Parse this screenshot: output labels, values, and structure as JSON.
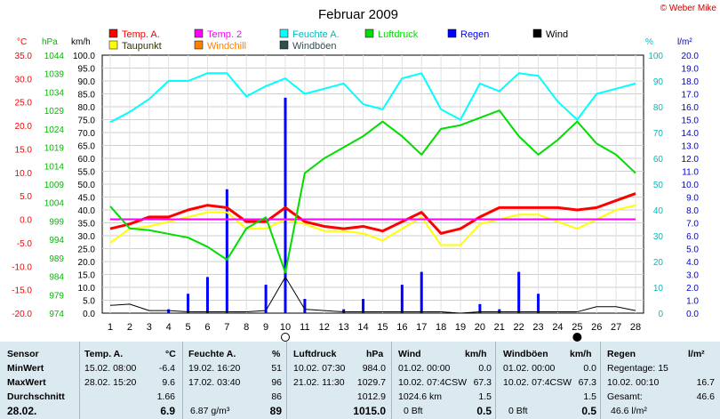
{
  "chart_data": {
    "type": "line",
    "title": "Februar 2009",
    "credit": "© Weber Mike",
    "x": [
      1,
      2,
      3,
      4,
      5,
      6,
      7,
      8,
      9,
      10,
      11,
      12,
      13,
      14,
      15,
      16,
      17,
      18,
      19,
      20,
      21,
      22,
      23,
      24,
      25,
      26,
      27,
      28
    ],
    "axes_units": {
      "temp": "°C",
      "pressure": "hPa",
      "speed": "km/h",
      "humidity": "%",
      "rain": "l/m²"
    },
    "axes": {
      "temp": {
        "min": -20,
        "max": 35,
        "step": 5
      },
      "pressure": {
        "min": 974,
        "max": 1044,
        "step": 5
      },
      "speed": {
        "min": 0,
        "max": 100,
        "step": 5
      },
      "humidity": {
        "min": 0,
        "max": 100,
        "step": 10
      },
      "rain": {
        "min": 0,
        "max": 20,
        "step": 1
      }
    },
    "legend": [
      {
        "name": "Temp. A.",
        "color": "#ff0000"
      },
      {
        "name": "Temp. 2",
        "color": "#ff00ff"
      },
      {
        "name": "Feuchte A.",
        "color": "#00ffff"
      },
      {
        "name": "Luftdruck",
        "color": "#00dd00"
      },
      {
        "name": "Regen",
        "color": "#0000ff"
      },
      {
        "name": "Wind",
        "color": "#000000"
      },
      {
        "name": "Taupunkt",
        "color": "#ffff00"
      },
      {
        "name": "Windchill",
        "color": "#ff8000"
      },
      {
        "name": "Windböen",
        "color": "#2f4f4f"
      }
    ],
    "series": [
      {
        "name": "Temp. A.",
        "axis": "temp",
        "color": "#ff0000",
        "width": 3,
        "values": [
          -2,
          -1,
          0.5,
          0.5,
          2,
          3,
          2.5,
          -0.5,
          -0.5,
          2.5,
          -0.5,
          -1.5,
          -2,
          -1.5,
          -2.5,
          -0.5,
          1.5,
          -3,
          -2,
          0.5,
          2.5,
          2.5,
          2.5,
          2.5,
          2,
          2.5,
          4,
          5.5
        ]
      },
      {
        "name": "Taupunkt",
        "axis": "temp",
        "color": "#ffff00",
        "width": 2,
        "values": [
          -5,
          -2,
          -1.5,
          -0.5,
          0.5,
          1.5,
          1.5,
          -2,
          -2,
          0,
          -1,
          -2.5,
          -2.5,
          -3,
          -4.5,
          -2,
          0.5,
          -5.5,
          -5.5,
          -1,
          0,
          1,
          1,
          -0.5,
          -2,
          0,
          2,
          3
        ]
      },
      {
        "name": "Temp. 2",
        "axis": "temp",
        "color": "#ff00ff",
        "width": 2,
        "values": [
          0,
          0,
          0,
          0,
          0,
          0,
          0,
          0,
          0,
          0,
          0,
          0,
          0,
          0,
          0,
          0,
          0,
          0,
          0,
          0,
          0,
          0,
          0,
          0,
          0,
          0,
          0,
          0
        ]
      },
      {
        "name": "Feuchte A.",
        "axis": "humidity",
        "color": "#00ffff",
        "width": 2,
        "values": [
          74,
          78,
          83,
          90,
          90,
          93,
          93,
          84,
          88,
          91,
          85,
          87,
          89,
          81,
          79,
          91,
          93,
          79,
          75,
          89,
          86,
          93,
          92,
          82,
          75,
          85,
          87,
          89
        ]
      },
      {
        "name": "Luftdruck",
        "axis": "pressure",
        "color": "#00dd00",
        "width": 2,
        "values": [
          1003,
          997,
          996.5,
          995.5,
          994.5,
          992,
          988.5,
          997,
          1000,
          985,
          1012,
          1016,
          1019,
          1022,
          1026,
          1022,
          1017,
          1024,
          1025,
          1027,
          1029,
          1022,
          1017,
          1021,
          1026,
          1020,
          1017,
          1012
        ]
      },
      {
        "name": "Wind",
        "axis": "speed",
        "color": "#000000",
        "width": 1,
        "values": [
          3,
          3.5,
          1,
          1,
          0.5,
          0.5,
          0.5,
          0.5,
          1,
          14,
          1.5,
          1,
          0.5,
          0.5,
          0.5,
          0.5,
          0.5,
          0.5,
          0,
          0.5,
          0.5,
          0.5,
          0.5,
          0.5,
          0.5,
          2.5,
          2.5,
          1
        ]
      }
    ],
    "bars": {
      "name": "Regen",
      "axis": "rain",
      "color": "#0000ff",
      "values": [
        {
          "x": 4,
          "value": 0.3
        },
        {
          "x": 5,
          "value": 1.5
        },
        {
          "x": 6,
          "value": 2.8
        },
        {
          "x": 7,
          "value": 9.6
        },
        {
          "x": 9,
          "value": 2.2
        },
        {
          "x": 10,
          "value": 16.7
        },
        {
          "x": 11,
          "value": 1.1
        },
        {
          "x": 13,
          "value": 0.3
        },
        {
          "x": 14,
          "value": 1.1
        },
        {
          "x": 16,
          "value": 2.2
        },
        {
          "x": 17,
          "value": 3.2
        },
        {
          "x": 20,
          "value": 0.7
        },
        {
          "x": 21,
          "value": 0.3
        },
        {
          "x": 22,
          "value": 3.2
        },
        {
          "x": 23,
          "value": 1.5
        }
      ]
    }
  },
  "moon": {
    "full_moon_day": 10,
    "new_moon_day": 25
  },
  "table": {
    "headers": {
      "sensor": "Sensor",
      "temp": "Temp. A.",
      "temp_unit": "°C",
      "hum": "Feuchte A.",
      "hum_unit": "%",
      "press": "Luftdruck",
      "press_unit": "hPa",
      "wind": "Wind",
      "wind_unit": "km/h",
      "gust": "Windböen",
      "gust_unit": "km/h",
      "rain": "Regen",
      "rain_unit": "l/m²"
    },
    "row_labels": {
      "min": "MinWert",
      "max": "MaxWert",
      "avg": "Durchschnitt",
      "date": "28.02."
    },
    "temp": {
      "min_time": "15.02.  08:00",
      "min_val": "-6.4",
      "max_time": "28.02.  15:20",
      "max_val": "9.6",
      "avg": "1.66",
      "cur": "6.9"
    },
    "hum": {
      "min_time": "19.02.  16:20",
      "min_val": "51",
      "max_time": "17.02.  03:40",
      "max_val": "96",
      "avg": "86",
      "cur_extra": "6.87 g/m³",
      "cur": "89"
    },
    "press": {
      "min_time": "10.02.  07:30",
      "min_val": "984.0",
      "max_time": "21.02.  11:30",
      "max_val": "1029.7",
      "avg": "1012.9",
      "cur": "1015.0"
    },
    "wind": {
      "min_time": "01.02.  00:00",
      "min_val": "0.0",
      "max_time": "10.02.  07:4CSW",
      "max_val": "67.3",
      "avg_extra": "1024.6 km",
      "avg": "1.5",
      "cur_extra": "0 Bft",
      "cur": "0.5"
    },
    "gust": {
      "min_time": "01.02.  00:00",
      "min_val": "0.0",
      "max_time": "10.02.  07:4CSW",
      "max_val": "67.3",
      "avg": "1.5",
      "cur_extra": "0 Bft",
      "cur": "0.5"
    },
    "rain": {
      "l1": "Regentage: 15",
      "l2a": "10.02.  00:10",
      "l2b": "16.7",
      "l3a": "Gesamt:",
      "l3b": "46.6",
      "l4": "46.6 l/m²"
    }
  }
}
